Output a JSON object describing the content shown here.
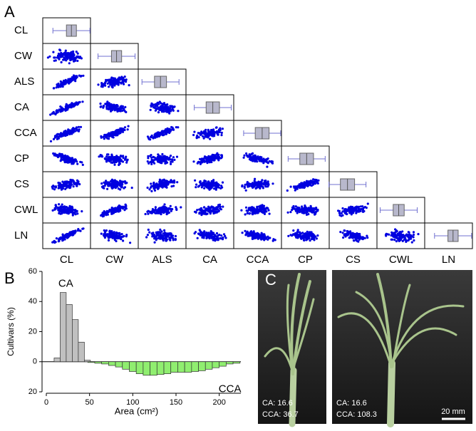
{
  "panels": {
    "a": "A",
    "b": "B",
    "c": "C"
  },
  "matrix": {
    "variables": [
      "CL",
      "CW",
      "ALS",
      "CA",
      "CCA",
      "CP",
      "CS",
      "CWL",
      "LN"
    ]
  },
  "chart_data": {
    "type": "histogram",
    "y_label": "Cultivars (%)",
    "x_label": "Area (cm²)",
    "xlim": [
      0,
      225
    ],
    "xticks": [
      0,
      50,
      100,
      150,
      200
    ],
    "ylim": [
      -20,
      60
    ],
    "yticks": [
      {
        "value": -20,
        "label": "20"
      },
      0,
      20,
      40,
      60
    ],
    "series": [
      {
        "name": "CA",
        "color": "#c0c0c0",
        "bins": [
          9,
          16,
          23,
          30,
          37,
          44,
          51
        ],
        "values": [
          2.5,
          46,
          38,
          28,
          13,
          1
        ]
      },
      {
        "name": "CCA",
        "color": "#90ee70",
        "bins": [
          48,
          56,
          64,
          72,
          80,
          88,
          96,
          104,
          112,
          120,
          128,
          136,
          144,
          152,
          160,
          168,
          176,
          184,
          192,
          200,
          208,
          216,
          224
        ],
        "values": [
          -0.5,
          -1,
          -1.5,
          -2.5,
          -3.5,
          -5,
          -6.5,
          -8,
          -9,
          -9,
          -8.5,
          -8,
          -7,
          -7,
          -7,
          -6.5,
          -6,
          -5,
          -4,
          -3,
          -1.5,
          -1
        ]
      }
    ]
  },
  "photos": [
    {
      "ca": "CA: 16.6",
      "cca": "CCA: 36.7"
    },
    {
      "ca": "CA: 16.6",
      "cca": "CCA: 108.3",
      "scale": "20 mm"
    }
  ]
}
